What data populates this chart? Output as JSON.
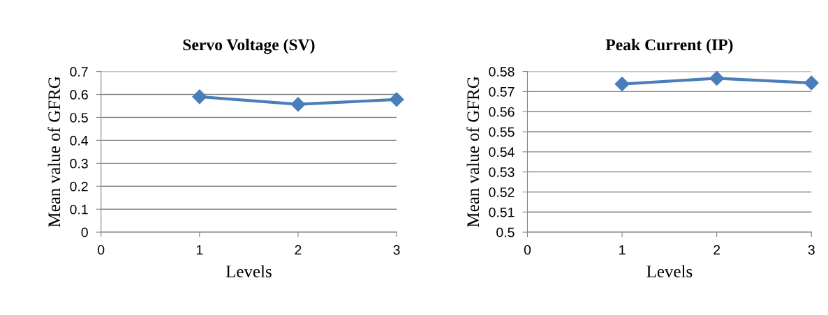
{
  "chart_data": [
    {
      "type": "line",
      "title": "Servo Voltage (SV)",
      "xlabel": "Levels",
      "ylabel": "Mean value of GFRG",
      "x": [
        1,
        2,
        3
      ],
      "series": [
        {
          "color": "#4a7ebb",
          "values": [
            0.59,
            0.557,
            0.578
          ]
        }
      ],
      "xlim": [
        0,
        3
      ],
      "xticks": [
        0,
        1,
        2,
        3
      ],
      "ylim": [
        0,
        0.7
      ],
      "yticks": [
        0,
        0.1,
        0.2,
        0.3,
        0.4,
        0.5,
        0.6,
        0.7
      ],
      "grid": "y",
      "marker": "diamond",
      "line_style": "solid"
    },
    {
      "type": "line",
      "title": "Peak Current (IP)",
      "xlabel": "Levels",
      "ylabel": "Mean value of GFRG",
      "x": [
        1,
        2,
        3
      ],
      "series": [
        {
          "color": "#4a7ebb",
          "values": [
            0.5738,
            0.5766,
            0.5743
          ]
        }
      ],
      "xlim": [
        0,
        3
      ],
      "xticks": [
        0,
        1,
        2,
        3
      ],
      "ylim": [
        0.5,
        0.58
      ],
      "yticks": [
        0.5,
        0.51,
        0.52,
        0.53,
        0.54,
        0.55,
        0.56,
        0.57,
        0.58
      ],
      "grid": "y",
      "marker": "diamond",
      "line_style": "solid"
    }
  ]
}
